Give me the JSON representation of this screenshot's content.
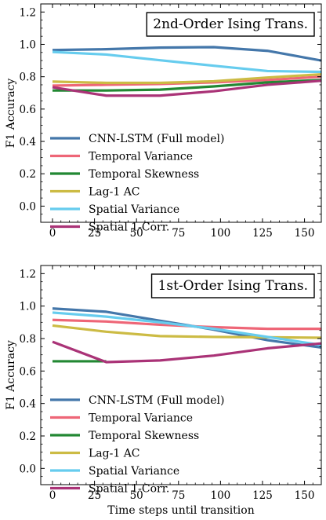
{
  "chart_data": [
    {
      "type": "line",
      "title": "2nd-Order Ising Trans.",
      "xlabel": "",
      "ylabel": "F1 Accuracy",
      "xlim": [
        -7,
        160
      ],
      "ylim": [
        -0.1,
        1.25
      ],
      "xticks": [
        "0",
        "25",
        "50",
        "75",
        "100",
        "125",
        "150"
      ],
      "yticks": [
        "0.0",
        "0.2",
        "0.4",
        "0.6",
        "0.8",
        "1.0",
        "1.2"
      ],
      "legend_position": "lower-left",
      "grid": false,
      "x": [
        0,
        32,
        64,
        96,
        128,
        160
      ],
      "series": [
        {
          "name": "CNN-LSTM (Full model)",
          "color": "#4477aa",
          "values": [
            0.965,
            0.97,
            0.98,
            0.983,
            0.96,
            0.9
          ]
        },
        {
          "name": "Temporal Variance",
          "color": "#ee6677",
          "values": [
            0.745,
            0.75,
            0.755,
            0.765,
            0.78,
            0.8
          ]
        },
        {
          "name": "Temporal Skewness",
          "color": "#228833",
          "values": [
            0.715,
            0.715,
            0.72,
            0.74,
            0.765,
            0.78
          ]
        },
        {
          "name": "Lag-1 AC",
          "color": "#ccbb44",
          "values": [
            0.77,
            0.762,
            0.762,
            0.772,
            0.795,
            0.815
          ]
        },
        {
          "name": "Spatial Variance",
          "color": "#66ccee",
          "values": [
            0.953,
            0.937,
            0.902,
            0.868,
            0.835,
            0.83
          ]
        },
        {
          "name": "Spatial 1-Corr.",
          "color": "#aa3377",
          "values": [
            0.735,
            0.683,
            0.683,
            0.71,
            0.75,
            0.775
          ]
        }
      ]
    },
    {
      "type": "line",
      "title": "1st-Order Ising Trans.",
      "xlabel": "Time steps until transition",
      "ylabel": "F1 Accuracy",
      "xlim": [
        -7,
        160
      ],
      "ylim": [
        -0.1,
        1.25
      ],
      "xticks": [
        "0",
        "25",
        "50",
        "75",
        "100",
        "125",
        "150"
      ],
      "yticks": [
        "0.0",
        "0.2",
        "0.4",
        "0.6",
        "0.8",
        "1.0",
        "1.2"
      ],
      "legend_position": "lower-left",
      "grid": false,
      "x": [
        0,
        32,
        64,
        96,
        128,
        160
      ],
      "series": [
        {
          "name": "CNN-LSTM (Full model)",
          "color": "#4477aa",
          "values": [
            0.985,
            0.965,
            0.91,
            0.855,
            0.79,
            0.745
          ]
        },
        {
          "name": "Temporal Variance",
          "color": "#ee6677",
          "values": [
            0.915,
            0.905,
            0.885,
            0.87,
            0.86,
            0.86
          ]
        },
        {
          "name": "Temporal Skewness",
          "color": "#228833",
          "values": [
            0.66,
            0.66,
            null,
            null,
            null,
            null
          ]
        },
        {
          "name": "Lag-1 AC",
          "color": "#ccbb44",
          "values": [
            0.88,
            0.842,
            0.815,
            0.81,
            0.808,
            0.805
          ]
        },
        {
          "name": "Spatial Variance",
          "color": "#66ccee",
          "values": [
            0.96,
            0.935,
            0.9,
            0.86,
            0.81,
            0.76
          ]
        },
        {
          "name": "Spatial 1-Corr.",
          "color": "#aa3377",
          "values": [
            0.78,
            0.655,
            0.665,
            0.695,
            0.74,
            0.77
          ]
        }
      ]
    }
  ]
}
